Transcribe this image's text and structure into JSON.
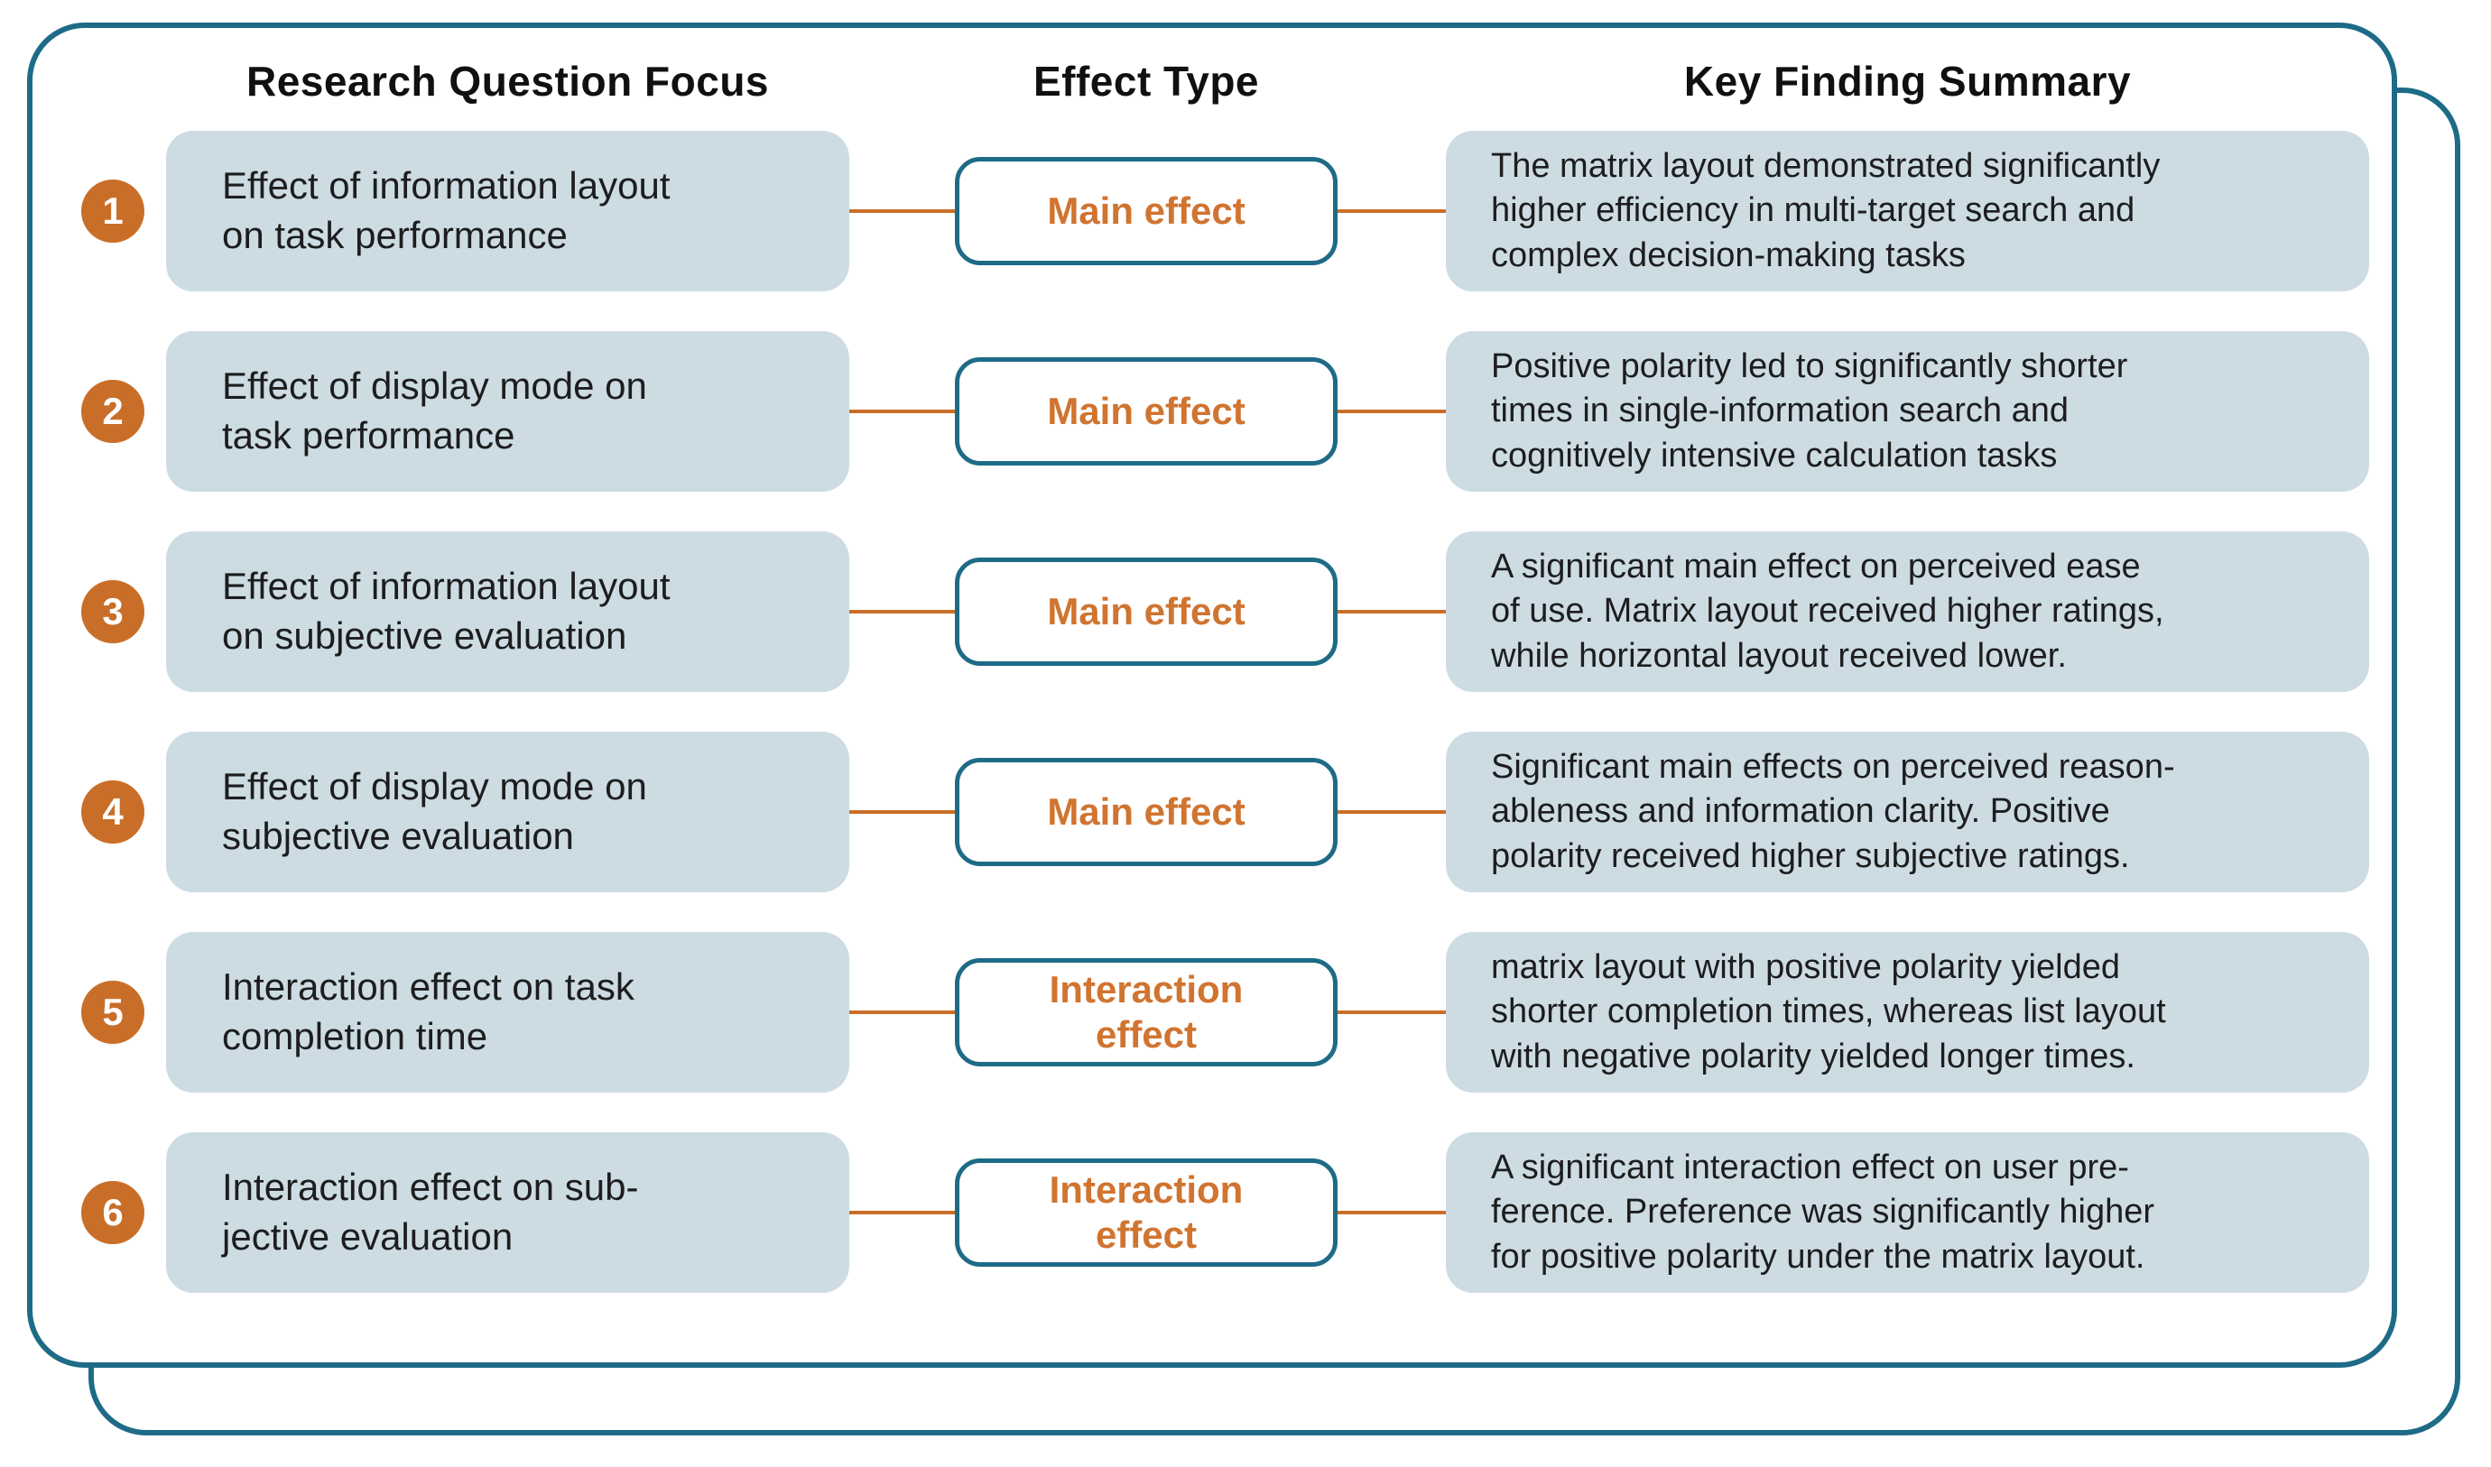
{
  "headers": [
    "Research Question Focus",
    "Effect Type",
    "Key Finding Summary"
  ],
  "rows": [
    {
      "number": "1",
      "question": "Effect of information layout\non task performance",
      "effect_type": "Main effect",
      "finding": "The matrix layout demonstrated significantly\nhigher efficiency in multi-target search and\ncomplex decision-making tasks"
    },
    {
      "number": "2",
      "question": "Effect of display mode on\ntask performance",
      "effect_type": "Main effect",
      "finding": "Positive polarity led to significantly shorter\ntimes in single-information search and\ncognitively intensive calculation tasks"
    },
    {
      "number": "3",
      "question": "Effect of information layout\non subjective evaluation",
      "effect_type": "Main effect",
      "finding": "A significant main effect on perceived ease\nof use. Matrix layout received higher ratings,\nwhile horizontal layout received lower."
    },
    {
      "number": "4",
      "question": "Effect of display mode on\nsubjective evaluation",
      "effect_type": "Main effect",
      "finding": "Significant main effects on perceived reason-\nableness and information clarity. Positive\npolarity received higher subjective ratings."
    },
    {
      "number": "5",
      "question": "Interaction effect on task\ncompletion time",
      "effect_type": "Interaction\neffect",
      "finding": "matrix layout with positive polarity yielded\nshorter completion times, whereas list layout\nwith negative polarity yielded longer times."
    },
    {
      "number": "6",
      "question": "Interaction effect on sub-\njective evaluation",
      "effect_type": "Interaction\neffect",
      "finding": "A significant interaction effect on user pre-\nference. Preference was significantly higher\nfor positive polarity under the matrix layout."
    }
  ],
  "colors": {
    "teal": "#1e6b87",
    "orange": "#c96e28",
    "orange_text": "#d07430",
    "box_fill": "#cddce3",
    "text_dark": "#1d1d1f"
  }
}
